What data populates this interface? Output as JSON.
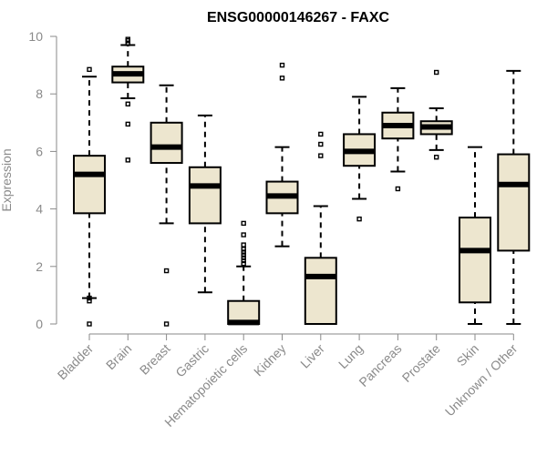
{
  "chart_data": {
    "type": "boxplot",
    "title": "ENSG00000146267 - FAXC",
    "xlabel": "",
    "ylabel": "Expression",
    "ylim": [
      0,
      10
    ],
    "yticks": [
      0,
      2,
      4,
      6,
      8,
      10
    ],
    "colors": {
      "box_fill": "#ede6cf",
      "box_stroke": "#000000",
      "axis": "#8a8a8a"
    },
    "categories": [
      "Bladder",
      "Brain",
      "Breast",
      "Gastric",
      "Hematopoietic cells",
      "Kidney",
      "Liver",
      "Lung",
      "Pancreas",
      "Prostate",
      "Skin",
      "Unknown / Other"
    ],
    "boxes": [
      {
        "name": "Bladder",
        "whisker_low": 0.9,
        "q1": 3.85,
        "median": 5.2,
        "q3": 5.85,
        "whisker_high": 8.6,
        "outliers": [
          0.0,
          0.8,
          0.9,
          8.85
        ]
      },
      {
        "name": "Brain",
        "whisker_low": 7.85,
        "q1": 8.4,
        "median": 8.7,
        "q3": 8.95,
        "whisker_high": 9.7,
        "outliers": [
          5.7,
          6.95,
          7.65,
          9.75,
          9.85,
          9.9
        ]
      },
      {
        "name": "Breast",
        "whisker_low": 3.5,
        "q1": 5.6,
        "median": 6.15,
        "q3": 7.0,
        "whisker_high": 8.3,
        "outliers": [
          0.0,
          1.85
        ]
      },
      {
        "name": "Gastric",
        "whisker_low": 1.1,
        "q1": 3.5,
        "median": 4.8,
        "q3": 5.45,
        "whisker_high": 7.25,
        "outliers": []
      },
      {
        "name": "Hematopoietic cells",
        "whisker_low": 0.0,
        "q1": 0.0,
        "median": 0.05,
        "q3": 0.8,
        "whisker_high": 2.0,
        "outliers": [
          2.1,
          2.2,
          2.3,
          2.4,
          2.5,
          2.6,
          2.75,
          3.1,
          3.5
        ]
      },
      {
        "name": "Kidney",
        "whisker_low": 2.7,
        "q1": 3.85,
        "median": 4.45,
        "q3": 4.95,
        "whisker_high": 6.15,
        "outliers": [
          8.55,
          9.0
        ]
      },
      {
        "name": "Liver",
        "whisker_low": 0.0,
        "q1": 0.0,
        "median": 1.65,
        "q3": 2.3,
        "whisker_high": 4.1,
        "outliers": [
          5.85,
          6.25,
          6.6
        ]
      },
      {
        "name": "Lung",
        "whisker_low": 4.35,
        "q1": 5.5,
        "median": 6.0,
        "q3": 6.6,
        "whisker_high": 7.9,
        "outliers": [
          3.65
        ]
      },
      {
        "name": "Pancreas",
        "whisker_low": 5.3,
        "q1": 6.45,
        "median": 6.9,
        "q3": 7.35,
        "whisker_high": 8.2,
        "outliers": [
          4.7
        ]
      },
      {
        "name": "Prostate",
        "whisker_low": 6.05,
        "q1": 6.6,
        "median": 6.85,
        "q3": 7.05,
        "whisker_high": 7.5,
        "outliers": [
          5.8,
          8.75
        ]
      },
      {
        "name": "Skin",
        "whisker_low": 0.0,
        "q1": 0.75,
        "median": 2.55,
        "q3": 3.7,
        "whisker_high": 6.15,
        "outliers": []
      },
      {
        "name": "Unknown / Other",
        "whisker_low": 0.0,
        "q1": 2.55,
        "median": 4.85,
        "q3": 5.9,
        "whisker_high": 8.8,
        "outliers": []
      }
    ]
  }
}
